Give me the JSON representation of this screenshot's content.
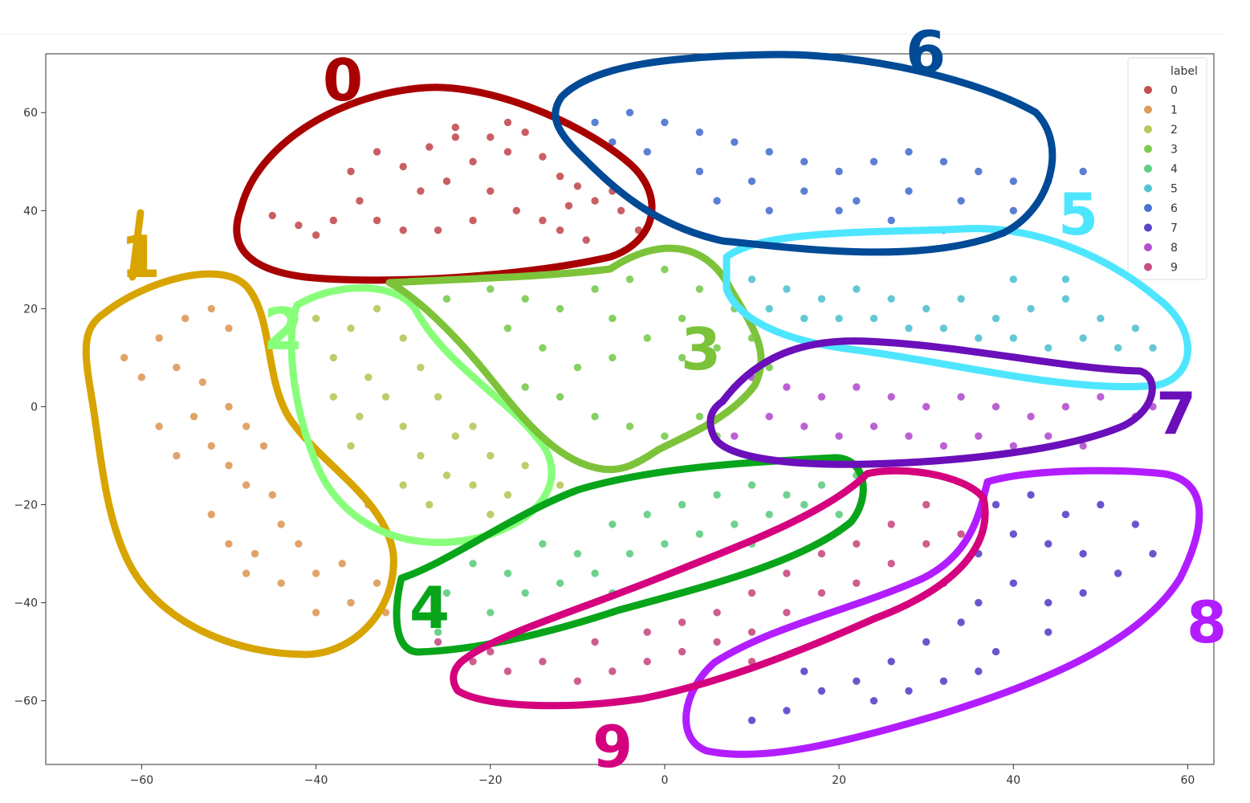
{
  "chart_data": {
    "type": "scatter",
    "title": "",
    "xlabel": "",
    "ylabel": "",
    "xlim": [
      -71,
      63
    ],
    "ylim": [
      -73,
      72
    ],
    "xticks": [
      -60,
      -40,
      -20,
      0,
      20,
      40,
      60
    ],
    "yticks": [
      60,
      40,
      20,
      0,
      -20,
      -40,
      -60
    ],
    "xtick_labels": [
      "−60",
      "−40",
      "−20",
      "0",
      "20",
      "40",
      "60"
    ],
    "ytick_labels": [
      "60",
      "40",
      "20",
      "0",
      "−20",
      "−40",
      "−60"
    ],
    "grid": false,
    "legend": {
      "title": "label",
      "placement": "top-right",
      "entries": [
        "0",
        "1",
        "2",
        "3",
        "4",
        "5",
        "6",
        "7",
        "8",
        "9"
      ]
    },
    "series": [
      {
        "name": "0",
        "color": "#c44e52",
        "points": [
          [
            -45,
            39
          ],
          [
            -42,
            37
          ],
          [
            -38,
            38
          ],
          [
            -35,
            42
          ],
          [
            -36,
            48
          ],
          [
            -33,
            52
          ],
          [
            -30,
            49
          ],
          [
            -27,
            53
          ],
          [
            -24,
            55
          ],
          [
            -22,
            50
          ],
          [
            -20,
            55
          ],
          [
            -18,
            52
          ],
          [
            -16,
            56
          ],
          [
            -14,
            51
          ],
          [
            -12,
            47
          ],
          [
            -10,
            45
          ],
          [
            -8,
            42
          ],
          [
            -6,
            44
          ],
          [
            -5,
            40
          ],
          [
            -3,
            36
          ],
          [
            -28,
            44
          ],
          [
            -25,
            46
          ],
          [
            -20,
            44
          ],
          [
            -17,
            40
          ],
          [
            -14,
            38
          ],
          [
            -12,
            36
          ],
          [
            -9,
            34
          ],
          [
            -22,
            38
          ],
          [
            -26,
            36
          ],
          [
            -30,
            36
          ],
          [
            -33,
            38
          ],
          [
            -40,
            35
          ],
          [
            -24,
            57
          ],
          [
            -18,
            58
          ],
          [
            -11,
            41
          ]
        ]
      },
      {
        "name": "1",
        "color": "#dd9a58",
        "points": [
          [
            -62,
            10
          ],
          [
            -58,
            14
          ],
          [
            -55,
            18
          ],
          [
            -52,
            20
          ],
          [
            -50,
            16
          ],
          [
            -56,
            8
          ],
          [
            -53,
            5
          ],
          [
            -60,
            6
          ],
          [
            -50,
            0
          ],
          [
            -48,
            -4
          ],
          [
            -52,
            -8
          ],
          [
            -54,
            -2
          ],
          [
            -50,
            -12
          ],
          [
            -48,
            -16
          ],
          [
            -45,
            -18
          ],
          [
            -52,
            -22
          ],
          [
            -50,
            -28
          ],
          [
            -47,
            -30
          ],
          [
            -44,
            -24
          ],
          [
            -42,
            -28
          ],
          [
            -40,
            -34
          ],
          [
            -37,
            -32
          ],
          [
            -36,
            -40
          ],
          [
            -33,
            -36
          ],
          [
            -32,
            -42
          ],
          [
            -40,
            -42
          ],
          [
            -44,
            -36
          ],
          [
            -48,
            -34
          ],
          [
            -56,
            -10
          ],
          [
            -58,
            -4
          ],
          [
            -46,
            -8
          ],
          [
            -34,
            -20
          ]
        ]
      },
      {
        "name": "2",
        "color": "#b8c75a",
        "points": [
          [
            -40,
            18
          ],
          [
            -36,
            16
          ],
          [
            -33,
            20
          ],
          [
            -30,
            14
          ],
          [
            -38,
            10
          ],
          [
            -34,
            6
          ],
          [
            -38,
            2
          ],
          [
            -35,
            -2
          ],
          [
            -32,
            2
          ],
          [
            -30,
            -4
          ],
          [
            -28,
            8
          ],
          [
            -26,
            2
          ],
          [
            -24,
            -6
          ],
          [
            -28,
            -10
          ],
          [
            -25,
            -14
          ],
          [
            -22,
            -16
          ],
          [
            -20,
            -10
          ],
          [
            -18,
            -18
          ],
          [
            -16,
            -12
          ],
          [
            -14,
            -20
          ],
          [
            -12,
            -16
          ],
          [
            -22,
            -4
          ],
          [
            -30,
            -16
          ],
          [
            -36,
            -8
          ],
          [
            -27,
            -20
          ],
          [
            -20,
            -22
          ]
        ]
      },
      {
        "name": "3",
        "color": "#7acb4f",
        "points": [
          [
            -25,
            22
          ],
          [
            -20,
            24
          ],
          [
            -16,
            22
          ],
          [
            -12,
            20
          ],
          [
            -8,
            24
          ],
          [
            -4,
            26
          ],
          [
            0,
            28
          ],
          [
            4,
            24
          ],
          [
            8,
            20
          ],
          [
            10,
            14
          ],
          [
            6,
            12
          ],
          [
            2,
            10
          ],
          [
            -2,
            14
          ],
          [
            -6,
            10
          ],
          [
            -10,
            8
          ],
          [
            -14,
            12
          ],
          [
            -18,
            16
          ],
          [
            -12,
            2
          ],
          [
            -8,
            -2
          ],
          [
            -4,
            -4
          ],
          [
            0,
            -6
          ],
          [
            4,
            -2
          ],
          [
            8,
            4
          ],
          [
            12,
            8
          ],
          [
            -16,
            4
          ],
          [
            -6,
            18
          ],
          [
            2,
            18
          ],
          [
            6,
            -6
          ]
        ]
      },
      {
        "name": "4",
        "color": "#5fce82",
        "points": [
          [
            -25,
            -38
          ],
          [
            -22,
            -32
          ],
          [
            -18,
            -34
          ],
          [
            -14,
            -28
          ],
          [
            -10,
            -30
          ],
          [
            -6,
            -24
          ],
          [
            -2,
            -22
          ],
          [
            2,
            -20
          ],
          [
            6,
            -18
          ],
          [
            10,
            -16
          ],
          [
            14,
            -18
          ],
          [
            18,
            -16
          ],
          [
            22,
            -14
          ],
          [
            -20,
            -42
          ],
          [
            -16,
            -38
          ],
          [
            -12,
            -36
          ],
          [
            -8,
            -34
          ],
          [
            -4,
            -30
          ],
          [
            0,
            -28
          ],
          [
            4,
            -26
          ],
          [
            8,
            -24
          ],
          [
            12,
            -22
          ],
          [
            16,
            -20
          ],
          [
            20,
            -22
          ],
          [
            -26,
            -46
          ],
          [
            -6,
            -38
          ],
          [
            10,
            -28
          ]
        ]
      },
      {
        "name": "5",
        "color": "#54c3d0",
        "points": [
          [
            10,
            26
          ],
          [
            14,
            24
          ],
          [
            18,
            22
          ],
          [
            22,
            24
          ],
          [
            26,
            22
          ],
          [
            30,
            20
          ],
          [
            34,
            22
          ],
          [
            38,
            18
          ],
          [
            42,
            20
          ],
          [
            46,
            22
          ],
          [
            50,
            18
          ],
          [
            54,
            16
          ],
          [
            56,
            12
          ],
          [
            52,
            12
          ],
          [
            48,
            14
          ],
          [
            44,
            12
          ],
          [
            40,
            14
          ],
          [
            36,
            14
          ],
          [
            32,
            16
          ],
          [
            28,
            16
          ],
          [
            24,
            18
          ],
          [
            20,
            18
          ],
          [
            16,
            18
          ],
          [
            12,
            20
          ],
          [
            46,
            26
          ],
          [
            40,
            26
          ]
        ]
      },
      {
        "name": "6",
        "color": "#4a72d0",
        "points": [
          [
            -8,
            58
          ],
          [
            -4,
            60
          ],
          [
            0,
            58
          ],
          [
            4,
            56
          ],
          [
            8,
            54
          ],
          [
            12,
            52
          ],
          [
            16,
            50
          ],
          [
            20,
            48
          ],
          [
            24,
            50
          ],
          [
            28,
            52
          ],
          [
            32,
            50
          ],
          [
            36,
            48
          ],
          [
            40,
            46
          ],
          [
            44,
            46
          ],
          [
            48,
            48
          ],
          [
            -2,
            52
          ],
          [
            4,
            48
          ],
          [
            10,
            46
          ],
          [
            16,
            44
          ],
          [
            22,
            42
          ],
          [
            28,
            44
          ],
          [
            34,
            42
          ],
          [
            40,
            40
          ],
          [
            20,
            40
          ],
          [
            26,
            38
          ],
          [
            32,
            36
          ],
          [
            38,
            36
          ],
          [
            6,
            42
          ],
          [
            12,
            40
          ],
          [
            -6,
            54
          ]
        ]
      },
      {
        "name": "7",
        "color": "#5645c9",
        "points": [
          [
            38,
            -20
          ],
          [
            42,
            -18
          ],
          [
            46,
            -22
          ],
          [
            50,
            -20
          ],
          [
            54,
            -24
          ],
          [
            56,
            -30
          ],
          [
            52,
            -34
          ],
          [
            48,
            -30
          ],
          [
            44,
            -28
          ],
          [
            40,
            -26
          ],
          [
            36,
            -30
          ],
          [
            32,
            -36
          ],
          [
            36,
            -40
          ],
          [
            40,
            -36
          ],
          [
            44,
            -40
          ],
          [
            48,
            -38
          ],
          [
            34,
            -44
          ],
          [
            30,
            -48
          ],
          [
            26,
            -52
          ],
          [
            22,
            -56
          ],
          [
            18,
            -58
          ],
          [
            14,
            -62
          ],
          [
            10,
            -64
          ],
          [
            28,
            -58
          ],
          [
            32,
            -56
          ],
          [
            36,
            -54
          ],
          [
            38,
            -50
          ],
          [
            44,
            -46
          ],
          [
            24,
            -60
          ],
          [
            16,
            -54
          ]
        ]
      },
      {
        "name": "8",
        "color": "#b450d0",
        "points": [
          [
            10,
            6
          ],
          [
            14,
            4
          ],
          [
            18,
            2
          ],
          [
            22,
            4
          ],
          [
            26,
            2
          ],
          [
            30,
            0
          ],
          [
            34,
            2
          ],
          [
            38,
            0
          ],
          [
            42,
            -2
          ],
          [
            46,
            0
          ],
          [
            50,
            2
          ],
          [
            54,
            -2
          ],
          [
            12,
            -2
          ],
          [
            16,
            -4
          ],
          [
            20,
            -6
          ],
          [
            24,
            -4
          ],
          [
            28,
            -6
          ],
          [
            32,
            -8
          ],
          [
            36,
            -6
          ],
          [
            40,
            -8
          ],
          [
            44,
            -6
          ],
          [
            48,
            -8
          ],
          [
            8,
            -6
          ],
          [
            56,
            0
          ]
        ]
      },
      {
        "name": "9",
        "color": "#c94d83",
        "points": [
          [
            -26,
            -48
          ],
          [
            -22,
            -52
          ],
          [
            -18,
            -54
          ],
          [
            -14,
            -52
          ],
          [
            -10,
            -56
          ],
          [
            -6,
            -54
          ],
          [
            -2,
            -52
          ],
          [
            2,
            -50
          ],
          [
            6,
            -48
          ],
          [
            10,
            -46
          ],
          [
            14,
            -42
          ],
          [
            18,
            -38
          ],
          [
            22,
            -36
          ],
          [
            26,
            -32
          ],
          [
            30,
            -28
          ],
          [
            34,
            -26
          ],
          [
            36,
            -22
          ],
          [
            30,
            -20
          ],
          [
            26,
            -24
          ],
          [
            22,
            -28
          ],
          [
            18,
            -30
          ],
          [
            14,
            -34
          ],
          [
            10,
            -38
          ],
          [
            6,
            -42
          ],
          [
            2,
            -44
          ],
          [
            -2,
            -46
          ],
          [
            -8,
            -48
          ],
          [
            -14,
            -46
          ],
          [
            -20,
            -50
          ],
          [
            4,
            -56
          ],
          [
            10,
            -52
          ]
        ]
      }
    ],
    "annotations": {
      "cluster_labels": [
        {
          "text": "0",
          "color": "#a80000"
        },
        {
          "text": "1",
          "color": "#d8a400"
        },
        {
          "text": "2",
          "color": "#88ff7a"
        },
        {
          "text": "3",
          "color": "#7cc33a"
        },
        {
          "text": "4",
          "color": "#08a51a"
        },
        {
          "text": "5",
          "color": "#4ee6ff"
        },
        {
          "text": "6",
          "color": "#004a96"
        },
        {
          "text": "7",
          "color": "#6a0fba"
        },
        {
          "text": "8",
          "color": "#b21dff"
        },
        {
          "text": "9",
          "color": "#d4007e"
        }
      ]
    }
  }
}
